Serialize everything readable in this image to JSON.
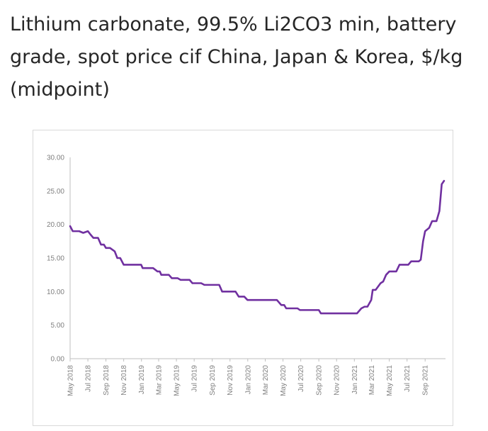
{
  "page": {
    "title": "Lithium carbonate, 99.5% Li2CO3 min, battery grade, spot price cif China, Japan & Korea, $/kg (midpoint)"
  },
  "chart_data": {
    "type": "line",
    "title": "Lithium carbonate, 99.5% Li2CO3 min, battery grade, spot price cif China, Japan & Korea, $/kg (midpoint)",
    "xlabel": "",
    "ylabel": "",
    "ylim": [
      0,
      30
    ],
    "y_ticks": [
      "0.00",
      "5.00",
      "10.00",
      "15.00",
      "20.00",
      "25.00",
      "30.00"
    ],
    "x_ticks": [
      "May 2018",
      "Jul 2018",
      "Sep 2018",
      "Nov 2018",
      "Jan 2019",
      "Mar 2019",
      "May 2019",
      "Jul 2019",
      "Sep 2019",
      "Nov 2019",
      "Jan 2020",
      "Mar 2020",
      "May 2020",
      "Jul 2020",
      "Sep 2020",
      "Nov 2020",
      "Jan 2021",
      "Mar 2021",
      "May 2021",
      "Jul 2021",
      "Sep 2021"
    ],
    "grid": false,
    "legend": "none",
    "line_color": "#7030a0",
    "series": [
      {
        "values": [
          [
            "2018-05-01",
            19.75
          ],
          [
            "2018-05-10",
            19.0
          ],
          [
            "2018-06-01",
            19.0
          ],
          [
            "2018-06-15",
            18.75
          ],
          [
            "2018-07-01",
            19.0
          ],
          [
            "2018-07-10",
            18.5
          ],
          [
            "2018-07-20",
            18.0
          ],
          [
            "2018-08-05",
            18.0
          ],
          [
            "2018-08-15",
            17.0
          ],
          [
            "2018-08-25",
            17.0
          ],
          [
            "2018-09-01",
            16.5
          ],
          [
            "2018-09-15",
            16.5
          ],
          [
            "2018-10-01",
            16.0
          ],
          [
            "2018-10-10",
            15.0
          ],
          [
            "2018-10-20",
            15.0
          ],
          [
            "2018-11-01",
            14.0
          ],
          [
            "2018-12-01",
            14.0
          ],
          [
            "2018-12-31",
            14.0
          ],
          [
            "2019-01-05",
            13.5
          ],
          [
            "2019-02-10",
            13.5
          ],
          [
            "2019-02-25",
            13.0
          ],
          [
            "2019-03-05",
            13.0
          ],
          [
            "2019-03-10",
            12.5
          ],
          [
            "2019-04-05",
            12.5
          ],
          [
            "2019-04-15",
            12.0
          ],
          [
            "2019-05-05",
            12.0
          ],
          [
            "2019-05-15",
            11.75
          ],
          [
            "2019-06-15",
            11.75
          ],
          [
            "2019-06-25",
            11.25
          ],
          [
            "2019-07-25",
            11.25
          ],
          [
            "2019-08-05",
            11.0
          ],
          [
            "2019-09-25",
            11.0
          ],
          [
            "2019-10-05",
            10.0
          ],
          [
            "2019-11-20",
            10.0
          ],
          [
            "2019-12-01",
            9.25
          ],
          [
            "2019-12-20",
            9.25
          ],
          [
            "2019-12-31",
            8.75
          ],
          [
            "2020-04-10",
            8.75
          ],
          [
            "2020-04-25",
            8.0
          ],
          [
            "2020-05-05",
            8.0
          ],
          [
            "2020-05-12",
            7.5
          ],
          [
            "2020-06-20",
            7.5
          ],
          [
            "2020-06-28",
            7.25
          ],
          [
            "2020-09-01",
            7.25
          ],
          [
            "2020-09-08",
            6.75
          ],
          [
            "2020-12-31",
            6.75
          ],
          [
            "2021-01-10",
            6.75
          ],
          [
            "2021-01-25",
            7.5
          ],
          [
            "2021-02-05",
            7.75
          ],
          [
            "2021-02-15",
            7.75
          ],
          [
            "2021-02-28",
            8.75
          ],
          [
            "2021-03-05",
            10.25
          ],
          [
            "2021-03-15",
            10.25
          ],
          [
            "2021-04-01",
            11.25
          ],
          [
            "2021-04-10",
            11.5
          ],
          [
            "2021-04-20",
            12.5
          ],
          [
            "2021-05-01",
            13.0
          ],
          [
            "2021-05-25",
            13.0
          ],
          [
            "2021-06-05",
            14.0
          ],
          [
            "2021-07-05",
            14.0
          ],
          [
            "2021-07-15",
            14.5
          ],
          [
            "2021-08-10",
            14.5
          ],
          [
            "2021-08-17",
            14.75
          ],
          [
            "2021-08-25",
            17.5
          ],
          [
            "2021-09-01",
            19.0
          ],
          [
            "2021-09-15",
            19.5
          ],
          [
            "2021-09-25",
            20.5
          ],
          [
            "2021-10-10",
            20.5
          ],
          [
            "2021-10-20",
            22.0
          ],
          [
            "2021-10-28",
            26.0
          ],
          [
            "2021-11-05",
            26.5
          ]
        ]
      }
    ],
    "x_range": [
      "2018-05-01",
      "2021-11-10"
    ]
  }
}
